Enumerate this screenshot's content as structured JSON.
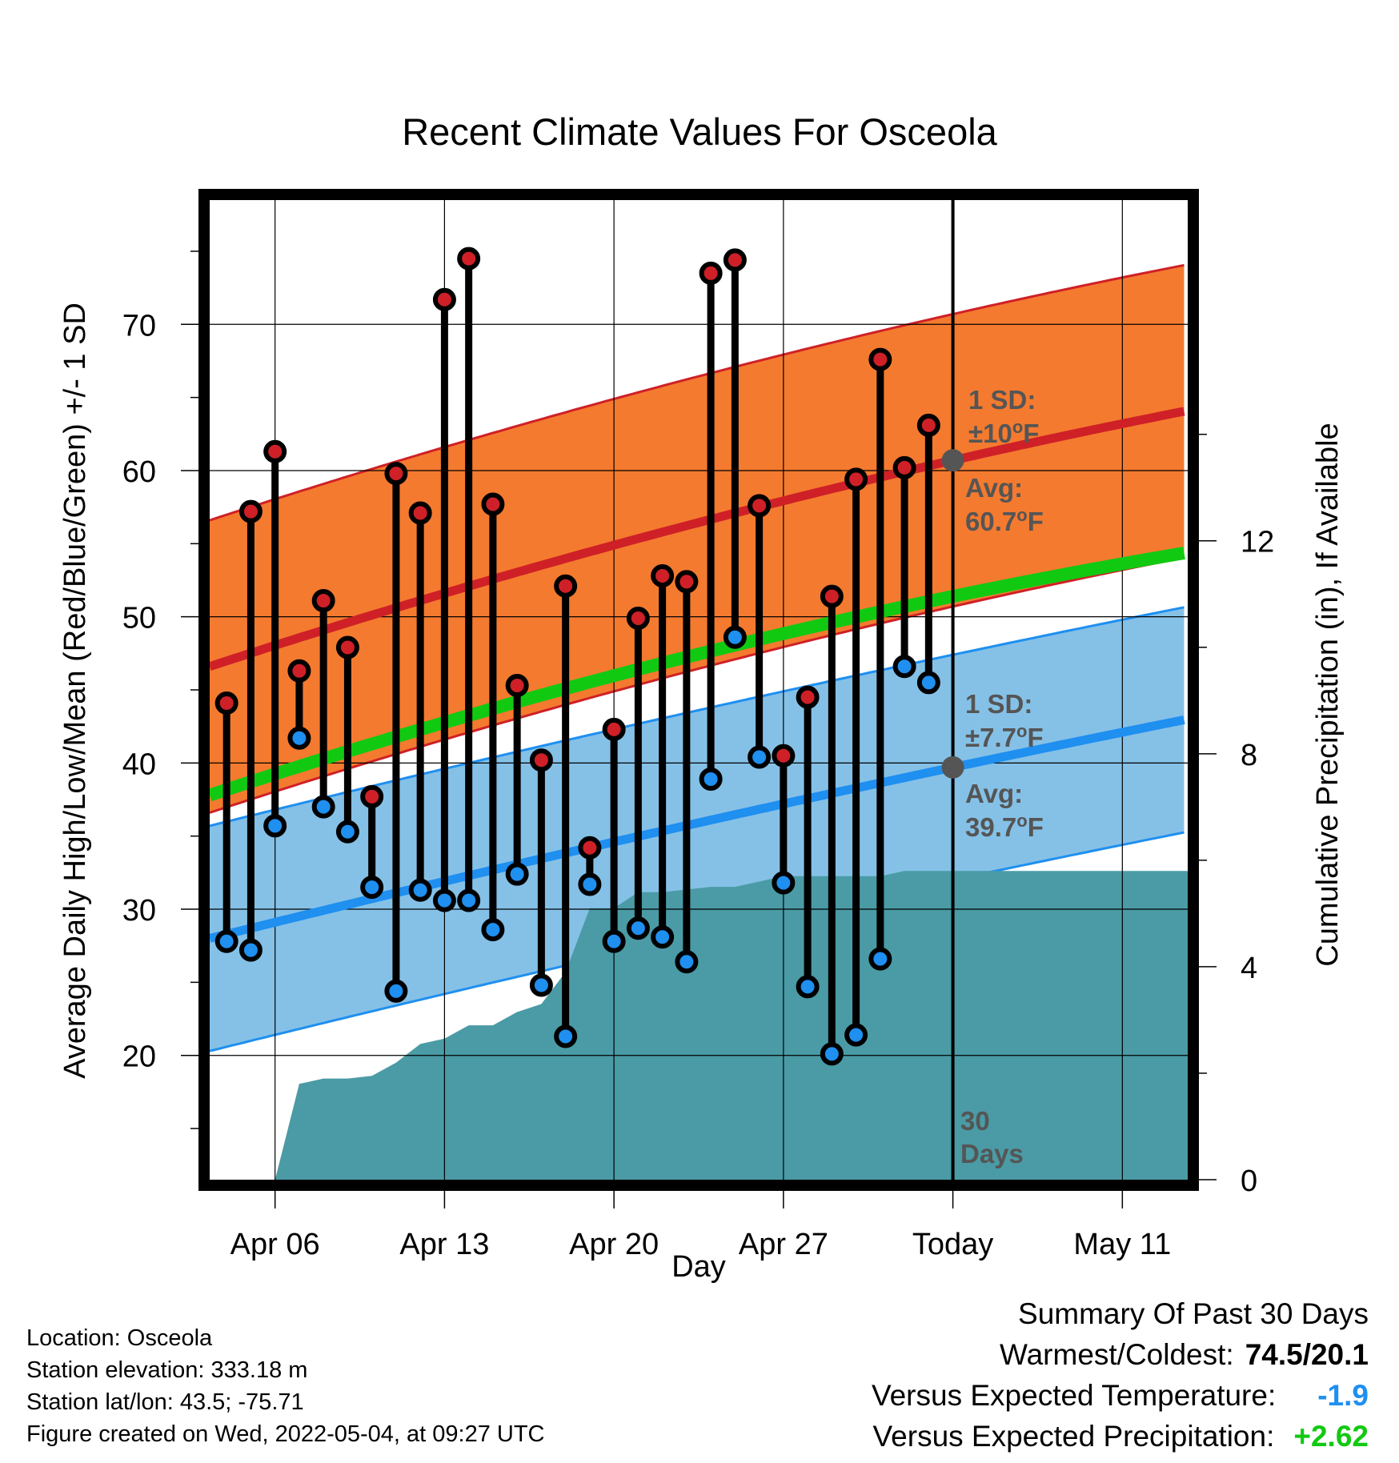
{
  "chart_data": {
    "type": "line",
    "title": "Recent Climate Values For Osceola",
    "xlabel": "Day",
    "ylabel_left": "Average Daily High/Low/Mean (Red/Blue/Green) +/- 1 SD",
    "ylabel_right": "Cumulative Precipitation (in), If Available",
    "x_ticks": [
      {
        "day": 6,
        "label": "Apr 06"
      },
      {
        "day": 13,
        "label": "Apr 13"
      },
      {
        "day": 20,
        "label": "Apr 20"
      },
      {
        "day": 27,
        "label": "Apr 27"
      },
      {
        "day": 34,
        "label": "Today"
      },
      {
        "day": 41,
        "label": "May 11"
      }
    ],
    "x_domain": "April 2022 (day of month; values above 30 continue into May)",
    "xlim": [
      3.3,
      43.7
    ],
    "ylim_left": [
      11.5,
      78.5
    ],
    "y_ticks_left": [
      20,
      30,
      40,
      50,
      60,
      70
    ],
    "ylim_right": [
      0,
      18.4
    ],
    "y_ticks_right": [
      0,
      4,
      8,
      12
    ],
    "grid": true,
    "observed": [
      {
        "date": "Apr 04",
        "high": 44.1,
        "low": 27.8
      },
      {
        "date": "Apr 05",
        "high": 57.2,
        "low": 27.2
      },
      {
        "date": "Apr 06",
        "high": 61.3,
        "low": 35.7
      },
      {
        "date": "Apr 07",
        "high": 46.3,
        "low": 41.7
      },
      {
        "date": "Apr 08",
        "high": 51.1,
        "low": 37.0
      },
      {
        "date": "Apr 09",
        "high": 47.9,
        "low": 35.3
      },
      {
        "date": "Apr 10",
        "high": 37.7,
        "low": 31.5
      },
      {
        "date": "Apr 11",
        "high": 59.8,
        "low": 24.4
      },
      {
        "date": "Apr 12",
        "high": 57.1,
        "low": 31.3
      },
      {
        "date": "Apr 13",
        "high": 71.7,
        "low": 30.6
      },
      {
        "date": "Apr 14",
        "high": 74.5,
        "low": 30.6
      },
      {
        "date": "Apr 15",
        "high": 57.7,
        "low": 28.6
      },
      {
        "date": "Apr 16",
        "high": 45.3,
        "low": 32.4
      },
      {
        "date": "Apr 17",
        "high": 40.2,
        "low": 24.8
      },
      {
        "date": "Apr 18",
        "high": 52.1,
        "low": 21.3
      },
      {
        "date": "Apr 19",
        "high": 34.2,
        "low": 31.7
      },
      {
        "date": "Apr 20",
        "high": 42.3,
        "low": 27.8
      },
      {
        "date": "Apr 21",
        "high": 49.9,
        "low": 28.7
      },
      {
        "date": "Apr 22",
        "high": 52.8,
        "low": 28.1
      },
      {
        "date": "Apr 23",
        "high": 52.4,
        "low": 26.4
      },
      {
        "date": "Apr 24",
        "high": 73.5,
        "low": 38.9
      },
      {
        "date": "Apr 25",
        "high": 74.4,
        "low": 48.6
      },
      {
        "date": "Apr 26",
        "high": 57.6,
        "low": 40.4
      },
      {
        "date": "Apr 27",
        "high": 40.5,
        "low": 31.8
      },
      {
        "date": "Apr 28",
        "high": 44.5,
        "low": 24.7
      },
      {
        "date": "Apr 29",
        "high": 51.4,
        "low": 20.1
      },
      {
        "date": "Apr 30",
        "high": 59.4,
        "low": 21.4
      },
      {
        "date": "May 01",
        "high": 67.6,
        "low": 26.6
      },
      {
        "date": "May 02",
        "high": 60.2,
        "low": 46.6
      },
      {
        "date": "May 03",
        "high": 63.1,
        "low": 45.5
      }
    ],
    "normal_high": {
      "start": 46.6,
      "today": 60.7,
      "end": 64.1,
      "sd": 10
    },
    "normal_low": {
      "start": 28.0,
      "today": 39.7,
      "end": 43.0,
      "sd": 7.7
    },
    "normal_mean": {
      "start": 37.8,
      "today": 51.4,
      "end": 54.4
    },
    "precip_cumulative": [
      {
        "day": 6,
        "in": 0.0
      },
      {
        "day": 7,
        "in": 1.8
      },
      {
        "day": 8,
        "in": 1.9
      },
      {
        "day": 9,
        "in": 1.9
      },
      {
        "day": 10,
        "in": 1.95
      },
      {
        "day": 11,
        "in": 2.2
      },
      {
        "day": 12,
        "in": 2.55
      },
      {
        "day": 13,
        "in": 2.65
      },
      {
        "day": 14,
        "in": 2.9
      },
      {
        "day": 15,
        "in": 2.9
      },
      {
        "day": 16,
        "in": 3.15
      },
      {
        "day": 17,
        "in": 3.3
      },
      {
        "day": 18,
        "in": 3.9
      },
      {
        "day": 19,
        "in": 5.1
      },
      {
        "day": 20,
        "in": 5.1
      },
      {
        "day": 21,
        "in": 5.4
      },
      {
        "day": 22,
        "in": 5.4
      },
      {
        "day": 23,
        "in": 5.45
      },
      {
        "day": 24,
        "in": 5.5
      },
      {
        "day": 25,
        "in": 5.5
      },
      {
        "day": 26,
        "in": 5.6
      },
      {
        "day": 27,
        "in": 5.7
      },
      {
        "day": 28,
        "in": 5.7
      },
      {
        "day": 29,
        "in": 5.7
      },
      {
        "day": 30,
        "in": 5.7
      },
      {
        "day": 31,
        "in": 5.7
      },
      {
        "day": 32,
        "in": 5.8
      },
      {
        "day": 33,
        "in": 5.8
      },
      {
        "day": 43.7,
        "in": 5.8
      }
    ],
    "annotations": {
      "high_sd_line1": "1 SD:",
      "high_sd_line2": "±10",
      "high_avg_line1": "Avg:",
      "high_avg_line2": "60.7",
      "low_sd_line1": "1 SD:",
      "low_sd_line2": "±7.7",
      "low_avg_line1": "Avg:",
      "low_avg_line2": "39.7",
      "deg": "o",
      "unit": "F",
      "days_line1": "30",
      "days_line2": "Days"
    },
    "colors": {
      "high_band": "#f47a2f",
      "high_line": "#cf2027",
      "low_band": "#85c1e7",
      "low_line": "#1f8ff0",
      "mean_line": "#12c912",
      "precip": "#4a9ba5",
      "high_dot": "#cf2027",
      "low_dot": "#1f8ff0",
      "today_dot": "#555555"
    }
  },
  "footer": {
    "location": "Location: Osceola",
    "elevation": "Station elevation: 333.18 m",
    "latlon": "Station lat/lon: 43.5; -75.71",
    "created": "Figure created on Wed, 2022-05-04, at 09:27 UTC"
  },
  "summary": {
    "heading": "Summary Of Past 30 Days",
    "warm_label": "Warmest/Coldest:",
    "warm_value": "74.5/20.1",
    "temp_label": "Versus Expected Temperature:",
    "temp_value": "-1.9",
    "temp_color": "#1f8ff0",
    "precip_label": "Versus Expected Precipitation:",
    "precip_value": "+2.62",
    "precip_color": "#12c912"
  }
}
